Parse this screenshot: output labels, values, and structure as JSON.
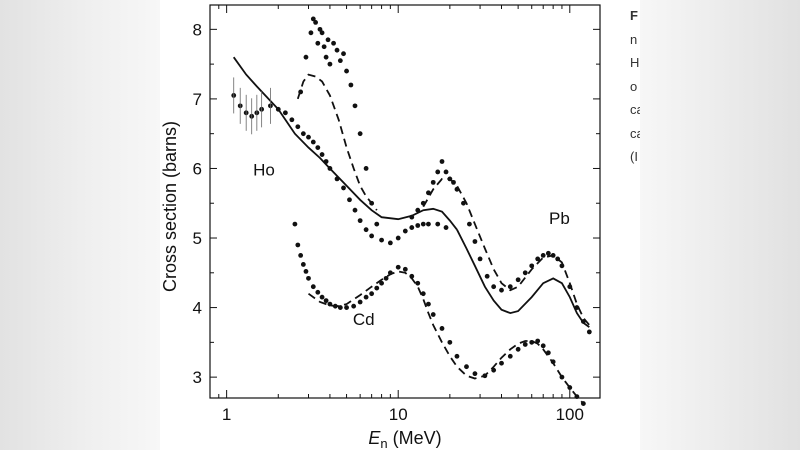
{
  "caption": {
    "lines": [
      "F",
      "n",
      "H",
      "o",
      "ca",
      "ca",
      "(I"
    ]
  },
  "colors": {
    "ink": "#111111",
    "page": "#ffffff",
    "backdrop": "#ececec"
  },
  "chart_data": {
    "type": "scatter",
    "title": "",
    "xlabel_symbol": "E",
    "xlabel_subscript": "n",
    "xlabel_unit": " (MeV)",
    "ylabel": "Cross section (barns)",
    "xscale": "log",
    "xlim": [
      0.8,
      150
    ],
    "ylim": [
      2.7,
      8.35
    ],
    "x_ticks": [
      1,
      10,
      100
    ],
    "x_tick_labels": [
      "1",
      "10",
      "100"
    ],
    "y_ticks": [
      3,
      4,
      5,
      6,
      7,
      8
    ],
    "y_tick_labels": [
      "3",
      "4",
      "5",
      "6",
      "7",
      "8"
    ],
    "annotations": [
      {
        "text": "Ho",
        "x": 1.65,
        "y": 5.9
      },
      {
        "text": "Pb",
        "x": 87,
        "y": 5.2
      },
      {
        "text": "Cd",
        "x": 6.3,
        "y": 3.75
      }
    ],
    "series": [
      {
        "name": "Ho data",
        "style": "points",
        "x": [
          1.1,
          1.2,
          1.3,
          1.4,
          1.5,
          1.6,
          1.8,
          2.0,
          2.2,
          2.4,
          2.6,
          2.8,
          3.0,
          3.2,
          3.4,
          3.6,
          3.8,
          4.0,
          4.4,
          4.8,
          5.2,
          5.6,
          6.0,
          6.5,
          7.0,
          8.0,
          9.0,
          10,
          11,
          12,
          13,
          14,
          15,
          17,
          19
        ],
        "y": [
          7.05,
          6.9,
          6.8,
          6.75,
          6.8,
          6.85,
          6.9,
          6.85,
          6.8,
          6.7,
          6.6,
          6.5,
          6.45,
          6.38,
          6.3,
          6.2,
          6.1,
          6.0,
          5.85,
          5.72,
          5.55,
          5.4,
          5.25,
          5.12,
          5.03,
          4.97,
          4.93,
          5.0,
          5.1,
          5.15,
          5.18,
          5.2,
          5.2,
          5.2,
          5.15
        ]
      },
      {
        "name": "Ho data (resonance)",
        "style": "points",
        "x": [
          2.7,
          2.9,
          3.1,
          3.2,
          3.3,
          3.4,
          3.5,
          3.6,
          3.7,
          3.8,
          3.9,
          4.0,
          4.2,
          4.4,
          4.6,
          4.8,
          5.0,
          5.3,
          5.6,
          6.0,
          6.5,
          7.0,
          7.5
        ],
        "y": [
          7.1,
          7.6,
          7.95,
          8.15,
          8.1,
          7.8,
          8.0,
          7.95,
          7.75,
          7.6,
          7.85,
          7.5,
          7.8,
          7.7,
          7.55,
          7.65,
          7.4,
          7.2,
          6.9,
          6.5,
          6.0,
          5.5,
          5.2
        ]
      },
      {
        "name": "Pb data",
        "style": "points",
        "x": [
          12,
          13,
          14,
          15,
          16,
          17,
          18,
          19,
          20,
          21,
          22,
          24,
          26,
          28,
          30,
          33,
          36,
          40,
          45,
          50,
          55,
          60,
          65,
          70,
          75,
          80,
          85,
          90,
          100,
          110,
          120,
          130
        ],
        "y": [
          5.3,
          5.4,
          5.5,
          5.65,
          5.8,
          5.95,
          6.1,
          5.95,
          5.85,
          5.8,
          5.7,
          5.5,
          5.2,
          4.95,
          4.7,
          4.45,
          4.3,
          4.25,
          4.3,
          4.4,
          4.5,
          4.6,
          4.7,
          4.75,
          4.78,
          4.75,
          4.7,
          4.6,
          4.3,
          4.0,
          3.8,
          3.65
        ]
      },
      {
        "name": "Cd data",
        "style": "points",
        "x": [
          2.5,
          2.6,
          2.7,
          2.8,
          2.9,
          3.0,
          3.2,
          3.4,
          3.6,
          3.8,
          4.0,
          4.3,
          4.6,
          5.0,
          5.5,
          6.0,
          6.5,
          7.0,
          7.5,
          8.0,
          8.5,
          9.0,
          10,
          11,
          12,
          13,
          14,
          15,
          16,
          18,
          20,
          22,
          25,
          28,
          32,
          36,
          40,
          45,
          50,
          55,
          60,
          65,
          70,
          75,
          80,
          90,
          100,
          110,
          120
        ],
        "y": [
          5.2,
          4.9,
          4.75,
          4.62,
          4.52,
          4.42,
          4.3,
          4.22,
          4.15,
          4.1,
          4.05,
          4.02,
          4.0,
          4.0,
          4.02,
          4.08,
          4.15,
          4.2,
          4.28,
          4.35,
          4.42,
          4.5,
          4.58,
          4.55,
          4.45,
          4.35,
          4.2,
          4.05,
          3.9,
          3.7,
          3.5,
          3.3,
          3.15,
          3.05,
          3.02,
          3.1,
          3.2,
          3.3,
          3.4,
          3.47,
          3.5,
          3.52,
          3.45,
          3.35,
          3.22,
          3.0,
          2.85,
          2.72,
          2.62
        ]
      },
      {
        "name": "Ho theory (solid)",
        "style": "solid",
        "x": [
          1.1,
          1.3,
          1.5,
          2.0,
          2.5,
          3.0,
          3.5,
          4.0,
          5.0,
          6.0,
          7.0,
          8.0,
          10,
          12,
          14,
          16,
          18,
          20,
          22
        ],
        "y": [
          7.6,
          7.35,
          7.18,
          6.85,
          6.5,
          6.3,
          6.15,
          6.0,
          5.75,
          5.55,
          5.4,
          5.3,
          5.27,
          5.32,
          5.4,
          5.42,
          5.38,
          5.25,
          5.12
        ]
      },
      {
        "name": "Ho theory (dashed)",
        "style": "dashed",
        "x": [
          2.6,
          2.8,
          3.0,
          3.3,
          3.6,
          4.0,
          4.5,
          5.0,
          5.5,
          6.0,
          6.5,
          7.0,
          7.5
        ],
        "y": [
          7.0,
          7.25,
          7.35,
          7.32,
          7.25,
          7.05,
          6.7,
          6.3,
          6.0,
          5.75,
          5.6,
          5.5,
          5.4
        ]
      },
      {
        "name": "Pb theory (dashed)",
        "style": "dashed",
        "x": [
          14,
          16,
          18,
          20,
          22,
          25,
          28,
          32,
          36,
          40,
          45,
          50,
          60,
          70,
          80,
          90,
          100,
          110,
          120,
          130
        ],
        "y": [
          5.45,
          5.7,
          5.85,
          5.85,
          5.75,
          5.5,
          5.2,
          4.85,
          4.55,
          4.35,
          4.25,
          4.3,
          4.55,
          4.72,
          4.75,
          4.65,
          4.35,
          4.05,
          3.85,
          3.75
        ]
      },
      {
        "name": "Pb theory (solid)",
        "style": "solid",
        "x": [
          22,
          25,
          28,
          32,
          36,
          40,
          45,
          50,
          60,
          70,
          80,
          90,
          100,
          110,
          120,
          130
        ],
        "y": [
          5.12,
          4.85,
          4.6,
          4.3,
          4.1,
          3.97,
          3.92,
          3.95,
          4.15,
          4.35,
          4.42,
          4.35,
          4.15,
          3.92,
          3.78,
          3.72
        ]
      },
      {
        "name": "Cd theory (dashed)",
        "style": "dashed",
        "x": [
          3.0,
          3.5,
          4.0,
          4.5,
          5.0,
          6.0,
          7.0,
          8.0,
          9.0,
          10,
          11,
          12,
          13,
          14,
          15,
          16,
          18,
          20,
          22,
          25,
          28,
          32,
          36,
          40,
          45,
          50,
          55,
          60,
          65,
          70,
          80,
          90,
          100,
          110,
          120
        ],
        "y": [
          4.2,
          4.08,
          4.03,
          4.02,
          4.05,
          4.18,
          4.3,
          4.4,
          4.48,
          4.52,
          4.5,
          4.42,
          4.3,
          4.12,
          3.92,
          3.75,
          3.5,
          3.3,
          3.15,
          3.02,
          2.98,
          3.02,
          3.15,
          3.28,
          3.4,
          3.48,
          3.52,
          3.52,
          3.48,
          3.4,
          3.2,
          3.0,
          2.85,
          2.72,
          2.62
        ]
      }
    ]
  }
}
